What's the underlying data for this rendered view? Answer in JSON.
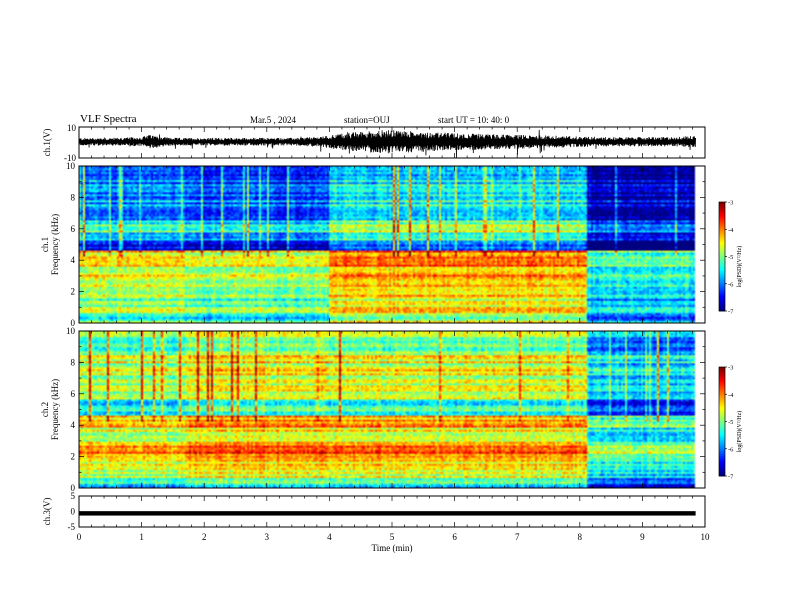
{
  "header": {
    "title": "VLF Spectra",
    "date": "Mar.5  , 2024",
    "station": "station=OUJ",
    "start": "start  UT  =   10: 40: 0"
  },
  "chart_data": [
    {
      "type": "line",
      "panel": "waveform-ch1",
      "ylabel": "ch.1(V)",
      "yticks": [
        "10",
        "-10"
      ],
      "ylim": [
        -10,
        10
      ],
      "xlim": [
        0,
        9.85
      ],
      "envelope": {
        "x": [
          0,
          0.5,
          1.0,
          1.1,
          1.5,
          2.0,
          2.5,
          3.0,
          3.5,
          3.9,
          4.1,
          4.5,
          4.8,
          5.0,
          5.5,
          6.0,
          6.5,
          7.0,
          7.5,
          8.0,
          8.5,
          9.0,
          9.5,
          9.85
        ],
        "amplitude": [
          2.5,
          2.5,
          3.0,
          4.5,
          2.5,
          2.5,
          2.5,
          2.5,
          2.5,
          3.5,
          5.0,
          6.5,
          7.5,
          7.5,
          6.5,
          5.5,
          5.0,
          4.5,
          4.0,
          3.5,
          3.0,
          3.0,
          3.0,
          4.0
        ]
      },
      "offset": 0.5,
      "color": "#000000"
    },
    {
      "type": "heatmap",
      "panel": "spectrogram-ch1",
      "ylabel": "ch.1\nFrequency  (kHz)",
      "yticks": [
        "0",
        "2",
        "4",
        "6",
        "8",
        "10"
      ],
      "ylim": [
        0,
        10
      ],
      "xlim": [
        0,
        9.85
      ],
      "colorbar": {
        "label": "log(PSD)(V²/Hz)",
        "ticks": [
          "-3",
          "-4",
          "-5",
          "-6",
          "-7"
        ],
        "range": [
          -7,
          -3
        ]
      },
      "profile_bands_khz": [
        {
          "from": 0.0,
          "to": 0.6,
          "value": -5.2
        },
        {
          "from": 0.6,
          "to": 1.0,
          "value": -4.3
        },
        {
          "from": 1.0,
          "to": 1.6,
          "value": -5.0
        },
        {
          "from": 1.6,
          "to": 2.4,
          "value": -4.6
        },
        {
          "from": 2.4,
          "to": 3.0,
          "value": -4.9
        },
        {
          "from": 3.0,
          "to": 3.6,
          "value": -4.6
        },
        {
          "from": 3.6,
          "to": 4.6,
          "value": -4.5
        },
        {
          "from": 4.6,
          "to": 5.2,
          "value": -6.4
        },
        {
          "from": 5.2,
          "to": 5.8,
          "value": -5.6
        },
        {
          "from": 5.8,
          "to": 6.6,
          "value": -5.3
        },
        {
          "from": 6.6,
          "to": 8.0,
          "value": -5.9
        },
        {
          "from": 8.0,
          "to": 10.0,
          "value": -6.0
        }
      ],
      "activity_segments_min": [
        {
          "from": 0.0,
          "to": 1.7,
          "offset": 0.0
        },
        {
          "from": 1.7,
          "to": 4.0,
          "offset": -0.2
        },
        {
          "from": 4.0,
          "to": 8.1,
          "offset": 0.45
        },
        {
          "from": 8.1,
          "to": 9.85,
          "offset": -0.75
        }
      ]
    },
    {
      "type": "heatmap",
      "panel": "spectrogram-ch2",
      "ylabel": "ch.2\nFrequency  (kHz)",
      "yticks": [
        "0",
        "2",
        "4",
        "6",
        "8",
        "10"
      ],
      "ylim": [
        0,
        10
      ],
      "xlim": [
        0,
        9.85
      ],
      "colorbar": {
        "label": "log(PSD)(V²/Hz)",
        "ticks": [
          "-3",
          "-4",
          "-5",
          "-6",
          "-7"
        ],
        "range": [
          -7,
          -3
        ]
      },
      "profile_bands_khz": [
        {
          "from": 0.0,
          "to": 0.6,
          "value": -5.6
        },
        {
          "from": 0.6,
          "to": 1.2,
          "value": -4.8
        },
        {
          "from": 1.2,
          "to": 2.0,
          "value": -4.5
        },
        {
          "from": 2.0,
          "to": 3.0,
          "value": -4.2
        },
        {
          "from": 3.0,
          "to": 3.8,
          "value": -4.7
        },
        {
          "from": 3.8,
          "to": 4.6,
          "value": -4.3
        },
        {
          "from": 4.6,
          "to": 5.6,
          "value": -5.6
        },
        {
          "from": 5.6,
          "to": 7.0,
          "value": -5.0
        },
        {
          "from": 7.0,
          "to": 8.4,
          "value": -4.8
        },
        {
          "from": 8.4,
          "to": 10.0,
          "value": -5.1
        }
      ],
      "activity_segments_min": [
        {
          "from": 0.0,
          "to": 1.7,
          "offset": 0.0
        },
        {
          "from": 1.7,
          "to": 4.0,
          "offset": 0.3
        },
        {
          "from": 4.0,
          "to": 8.1,
          "offset": 0.2
        },
        {
          "from": 8.1,
          "to": 9.85,
          "offset": -0.8
        }
      ]
    },
    {
      "type": "line",
      "panel": "waveform-ch3",
      "ylabel": "ch.3(V)",
      "yticks": [
        "5",
        "0",
        "-5"
      ],
      "ylim": [
        -5,
        5
      ],
      "xlim": [
        0,
        9.85
      ],
      "constant_value": -0.6,
      "color": "#000000"
    }
  ],
  "x_axis": {
    "label": "Time  (min)",
    "ticks": [
      "0",
      "1",
      "2",
      "3",
      "4",
      "5",
      "6",
      "7",
      "8",
      "9",
      "10"
    ],
    "range": [
      0,
      10
    ]
  }
}
